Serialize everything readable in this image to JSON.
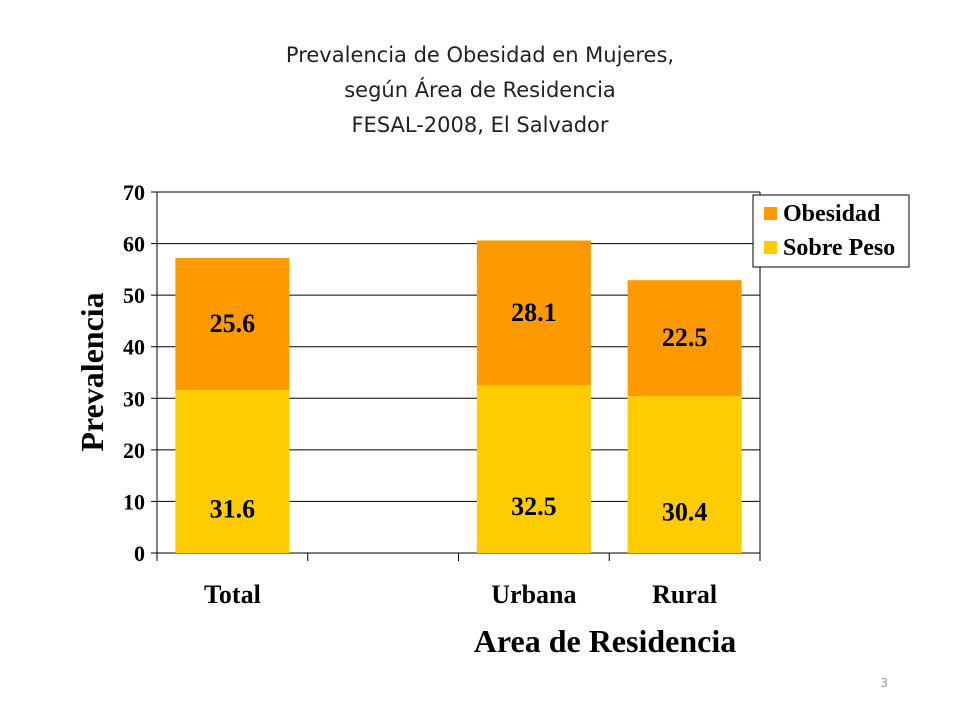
{
  "slide": {
    "title_lines": [
      "Prevalencia de Obesidad en Mujeres,",
      "según Área de Residencia",
      "FESAL-2008, El Salvador"
    ],
    "page_number": "3"
  },
  "colors": {
    "obesidad": "#FF9900",
    "sobre_peso": "#FFCC00",
    "gridline": "#000000",
    "text": "#000000"
  },
  "chart_data": {
    "type": "bar",
    "stacked": true,
    "title": "",
    "categories": [
      "Total",
      "",
      "Urbana",
      "Rural"
    ],
    "series": [
      {
        "name": "Sobre Peso",
        "values": [
          31.6,
          null,
          32.5,
          30.4
        ],
        "labels": [
          "31.6",
          "",
          "32.5",
          "30.4"
        ]
      },
      {
        "name": "Obesidad",
        "values": [
          25.6,
          null,
          28.1,
          22.5
        ],
        "labels": [
          "25.6",
          "",
          "28.1",
          "22.5"
        ]
      }
    ],
    "xlabel": "Area de Residencia",
    "ylabel": "Prevalencia",
    "ylim": [
      0,
      70
    ],
    "yticks": [
      "0",
      "10",
      "20",
      "30",
      "40",
      "50",
      "60",
      "70"
    ],
    "grid": true,
    "legend": {
      "placement": "top-right",
      "entries": [
        "Obesidad",
        "Sobre Peso"
      ]
    }
  }
}
